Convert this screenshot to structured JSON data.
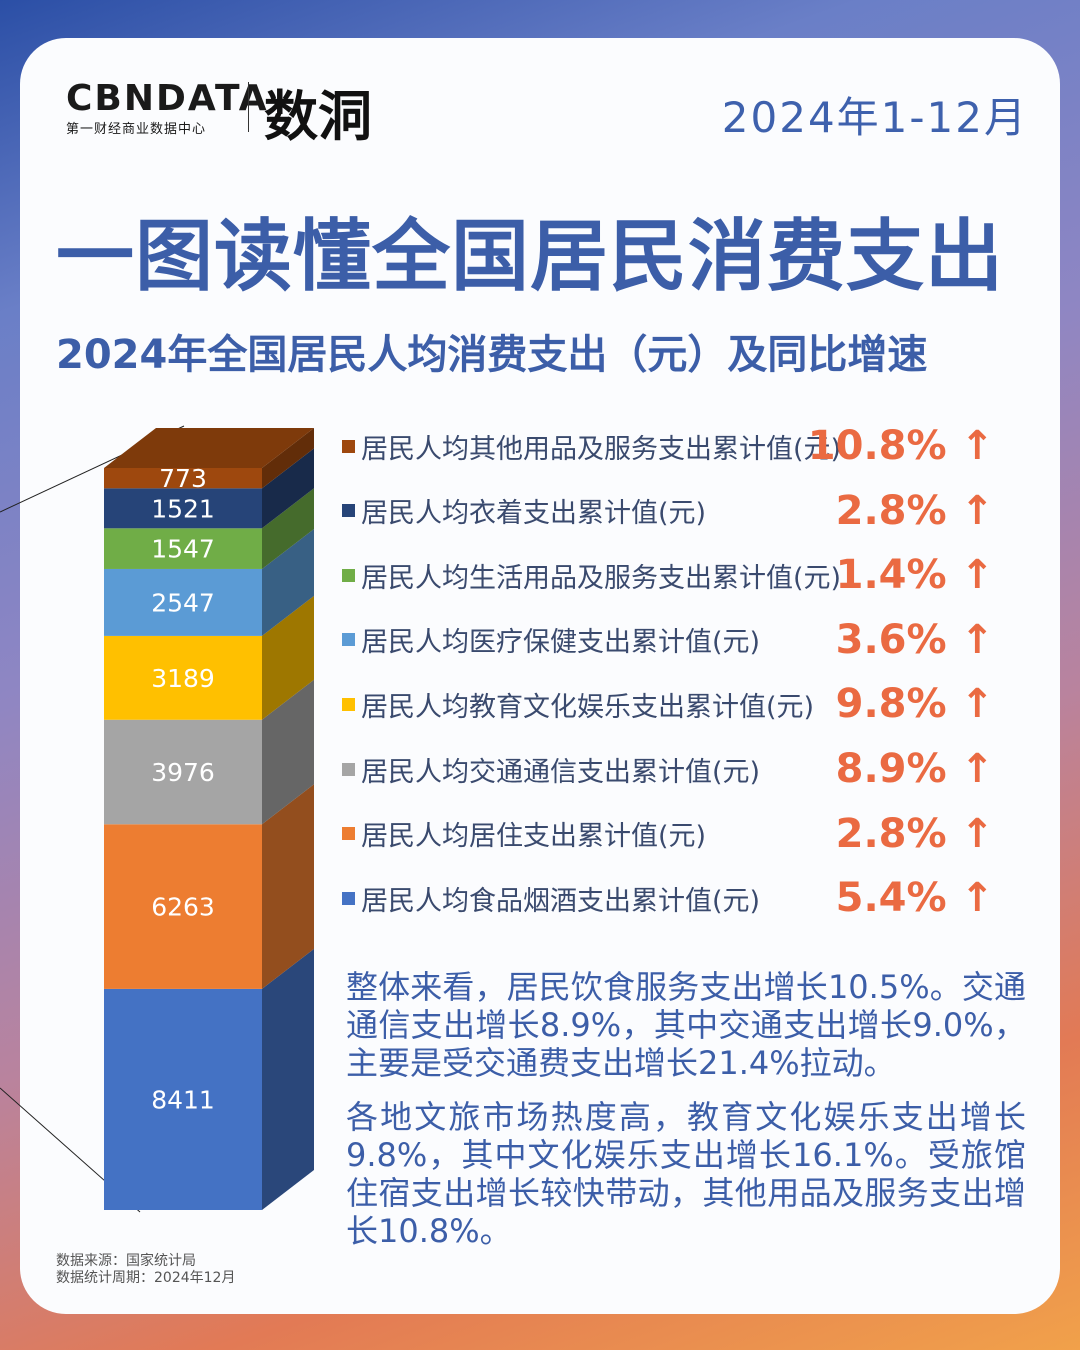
{
  "header": {
    "logo_brand": "CBNDATA",
    "logo_tagline": "第一财经商业数据中心",
    "logo_secondary": "数洞",
    "period": "2024年1-12月"
  },
  "title": "一图读懂全国居民消费支出",
  "subtitle": "2024年全国居民人均消费支出（元）及同比增速",
  "chart_data": {
    "type": "bar",
    "stacked": true,
    "categories": [
      "2024"
    ],
    "series": [
      {
        "name": "居民人均食品烟酒支出累计值(元)",
        "values": [
          8411
        ],
        "growth": "5.4%",
        "color": "#4472c4"
      },
      {
        "name": "居民人均居住支出累计值(元)",
        "values": [
          6263
        ],
        "growth": "2.8%",
        "color": "#ed7d31"
      },
      {
        "name": "居民人均交通通信支出累计值(元)",
        "values": [
          3976
        ],
        "growth": "8.9%",
        "color": "#a5a5a5"
      },
      {
        "name": "居民人均教育文化娱乐支出累计值(元)",
        "values": [
          3189
        ],
        "growth": "9.8%",
        "color": "#ffc000"
      },
      {
        "name": "居民人均医疗保健支出累计值(元)",
        "values": [
          2547
        ],
        "growth": "3.6%",
        "color": "#5b9bd5"
      },
      {
        "name": "居民人均生活用品及服务支出累计值(元)",
        "values": [
          1547
        ],
        "growth": "1.4%",
        "color": "#70ad47"
      },
      {
        "name": "居民人均衣着支出累计值(元)",
        "values": [
          1521
        ],
        "growth": "2.8%",
        "color": "#264478"
      },
      {
        "name": "居民人均其他用品及服务支出累计值(元)",
        "values": [
          773
        ],
        "growth": "10.8%",
        "color": "#9e480e"
      }
    ],
    "growth_arrow": "↑"
  },
  "paragraphs": [
    "整体来看，居民饮食服务支出增长10.5%。交通通信支出增长8.9%，其中交通支出增长9.0%，主要是受交通费支出增长21.4%拉动。",
    "各地文旅市场热度高，教育文化娱乐支出增长9.8%，其中文化娱乐支出增长16.1%。受旅馆住宿支出增长较快带动，其他用品及服务支出增长10.8%。"
  ],
  "source": {
    "line1": "数据来源：国家统计局",
    "line2": "数据统计周期：2024年12月"
  }
}
